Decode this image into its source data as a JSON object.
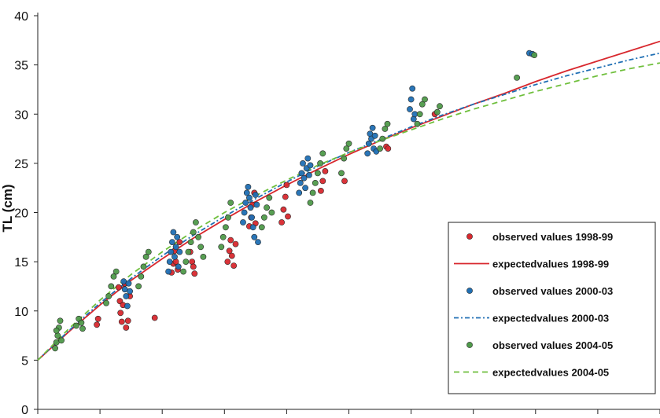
{
  "chart_data": {
    "type": "scatter",
    "title": "",
    "xlabel": "",
    "ylabel": "TL (cm)",
    "ylim": [
      0,
      40
    ],
    "yticks": [
      0,
      5,
      10,
      15,
      20,
      25,
      30,
      35,
      40
    ],
    "xlim": [
      0,
      10
    ],
    "grid": false,
    "legend_position": "bottom-right",
    "colors": {
      "s1998": "#d8282e",
      "s2000": "#1f6fb4",
      "s2004": "#6fbf3c",
      "s2004_marker": "#4f9a4a"
    },
    "series": [
      {
        "name": "observed values 1998-99",
        "kind": "observed",
        "color_key": "s1998",
        "points": [
          [
            0.95,
            8.6
          ],
          [
            0.97,
            9.2
          ],
          [
            1.3,
            12.4
          ],
          [
            1.32,
            11.0
          ],
          [
            1.33,
            9.8
          ],
          [
            1.35,
            8.9
          ],
          [
            1.37,
            10.6
          ],
          [
            1.4,
            12.8
          ],
          [
            1.42,
            8.3
          ],
          [
            1.45,
            9.0
          ],
          [
            1.48,
            11.5
          ],
          [
            1.88,
            9.3
          ],
          [
            2.15,
            13.9
          ],
          [
            2.18,
            14.8
          ],
          [
            2.2,
            16.1
          ],
          [
            2.22,
            15.0
          ],
          [
            2.25,
            14.2
          ],
          [
            2.28,
            17.0
          ],
          [
            2.45,
            16.0
          ],
          [
            2.48,
            15.0
          ],
          [
            2.5,
            14.5
          ],
          [
            2.52,
            13.8
          ],
          [
            3.05,
            15.0
          ],
          [
            3.08,
            16.1
          ],
          [
            3.1,
            17.2
          ],
          [
            3.12,
            15.6
          ],
          [
            3.15,
            14.6
          ],
          [
            3.18,
            16.8
          ],
          [
            3.4,
            18.6
          ],
          [
            3.43,
            19.5
          ],
          [
            3.45,
            20.8
          ],
          [
            3.48,
            22.0
          ],
          [
            3.5,
            18.9
          ],
          [
            3.92,
            19.0
          ],
          [
            3.95,
            20.3
          ],
          [
            3.98,
            21.6
          ],
          [
            4.0,
            22.8
          ],
          [
            4.02,
            19.6
          ],
          [
            4.55,
            22.2
          ],
          [
            4.58,
            23.2
          ],
          [
            4.62,
            24.2
          ],
          [
            4.93,
            23.2
          ],
          [
            5.6,
            26.7
          ],
          [
            5.63,
            26.5
          ],
          [
            6.38,
            30.0
          ]
        ]
      },
      {
        "name": "expected values 1998-99",
        "kind": "expected",
        "color_key": "s1998",
        "dash": "solid",
        "x": [
          0.0,
          0.5,
          1.0,
          1.5,
          2.0,
          2.5,
          3.0,
          3.5,
          4.0,
          4.5,
          5.0,
          5.5,
          6.0,
          6.5,
          7.0,
          7.5,
          8.0,
          8.5,
          9.0,
          9.5,
          10.0
        ],
        "y": [
          5.0,
          7.9,
          10.6,
          13.1,
          15.3,
          17.4,
          19.3,
          21.1,
          22.8,
          24.4,
          25.9,
          27.3,
          28.6,
          29.8,
          31.0,
          32.1,
          33.3,
          34.4,
          35.4,
          36.4,
          37.4
        ]
      },
      {
        "name": "observed values 2000-03",
        "kind": "observed",
        "color_key": "s2000",
        "points": [
          [
            1.38,
            13.0
          ],
          [
            1.4,
            12.2
          ],
          [
            1.42,
            11.5
          ],
          [
            1.44,
            10.5
          ],
          [
            1.46,
            12.8
          ],
          [
            1.48,
            12.0
          ],
          [
            2.1,
            14.0
          ],
          [
            2.12,
            15.0
          ],
          [
            2.14,
            16.0
          ],
          [
            2.16,
            17.0
          ],
          [
            2.18,
            18.0
          ],
          [
            2.2,
            15.5
          ],
          [
            2.22,
            16.5
          ],
          [
            2.24,
            17.5
          ],
          [
            2.26,
            14.5
          ],
          [
            2.28,
            16.0
          ],
          [
            3.3,
            19.0
          ],
          [
            3.32,
            20.0
          ],
          [
            3.34,
            21.0
          ],
          [
            3.36,
            22.0
          ],
          [
            3.38,
            22.6
          ],
          [
            3.4,
            21.5
          ],
          [
            3.42,
            20.5
          ],
          [
            3.44,
            19.5
          ],
          [
            3.46,
            18.5
          ],
          [
            3.48,
            17.5
          ],
          [
            3.5,
            21.8
          ],
          [
            3.52,
            20.8
          ],
          [
            3.54,
            17.0
          ],
          [
            4.2,
            22.0
          ],
          [
            4.22,
            23.0
          ],
          [
            4.24,
            24.0
          ],
          [
            4.26,
            25.0
          ],
          [
            4.28,
            23.5
          ],
          [
            4.3,
            22.5
          ],
          [
            4.32,
            24.5
          ],
          [
            4.34,
            25.5
          ],
          [
            4.36,
            23.8
          ],
          [
            4.38,
            24.8
          ],
          [
            5.3,
            26.0
          ],
          [
            5.32,
            27.0
          ],
          [
            5.34,
            28.0
          ],
          [
            5.36,
            27.5
          ],
          [
            5.38,
            28.6
          ],
          [
            5.4,
            26.5
          ],
          [
            5.42,
            27.8
          ],
          [
            5.44,
            26.2
          ],
          [
            5.98,
            30.5
          ],
          [
            6.0,
            31.5
          ],
          [
            6.02,
            32.6
          ],
          [
            6.04,
            29.5
          ],
          [
            6.06,
            30.0
          ],
          [
            7.9,
            36.2
          ],
          [
            7.95,
            36.1
          ]
        ]
      },
      {
        "name": "expected values 2000-03",
        "kind": "expected",
        "color_key": "s2000",
        "dash": "dash-dot",
        "x": [
          0.0,
          0.5,
          1.0,
          1.5,
          2.0,
          2.5,
          3.0,
          3.5,
          4.0,
          4.5,
          5.0,
          5.5,
          6.0,
          6.5,
          7.0,
          7.5,
          8.0,
          8.5,
          9.0,
          9.5,
          10.0
        ],
        "y": [
          5.0,
          8.0,
          10.8,
          13.3,
          15.6,
          17.7,
          19.6,
          21.4,
          23.1,
          24.7,
          26.1,
          27.4,
          28.7,
          29.9,
          31.0,
          32.0,
          33.0,
          33.9,
          34.7,
          35.5,
          36.2
        ]
      },
      {
        "name": "observed values 2004-05",
        "kind": "observed",
        "color_key": "s2004_marker",
        "points": [
          [
            0.28,
            6.2
          ],
          [
            0.3,
            6.8
          ],
          [
            0.32,
            7.5
          ],
          [
            0.34,
            8.3
          ],
          [
            0.36,
            9.0
          ],
          [
            0.38,
            7.0
          ],
          [
            0.3,
            8.0
          ],
          [
            0.62,
            8.5
          ],
          [
            0.66,
            9.2
          ],
          [
            0.7,
            8.8
          ],
          [
            0.72,
            8.2
          ],
          [
            1.1,
            10.8
          ],
          [
            1.14,
            11.5
          ],
          [
            1.18,
            12.5
          ],
          [
            1.22,
            13.5
          ],
          [
            1.26,
            14.0
          ],
          [
            1.62,
            12.5
          ],
          [
            1.66,
            13.5
          ],
          [
            1.7,
            14.5
          ],
          [
            1.74,
            15.5
          ],
          [
            1.78,
            16.0
          ],
          [
            2.34,
            14.0
          ],
          [
            2.38,
            15.0
          ],
          [
            2.42,
            16.0
          ],
          [
            2.46,
            17.0
          ],
          [
            2.5,
            18.0
          ],
          [
            2.54,
            19.0
          ],
          [
            2.58,
            17.5
          ],
          [
            2.62,
            16.5
          ],
          [
            2.66,
            15.5
          ],
          [
            2.95,
            16.5
          ],
          [
            2.98,
            17.5
          ],
          [
            3.02,
            18.5
          ],
          [
            3.06,
            19.5
          ],
          [
            3.1,
            21.0
          ],
          [
            3.6,
            18.5
          ],
          [
            3.64,
            19.5
          ],
          [
            3.68,
            20.5
          ],
          [
            3.72,
            21.5
          ],
          [
            3.76,
            20.0
          ],
          [
            4.38,
            21.0
          ],
          [
            4.42,
            22.0
          ],
          [
            4.46,
            23.0
          ],
          [
            4.5,
            24.0
          ],
          [
            4.54,
            25.0
          ],
          [
            4.58,
            26.0
          ],
          [
            4.88,
            24.0
          ],
          [
            4.92,
            25.5
          ],
          [
            4.96,
            26.5
          ],
          [
            5.0,
            27.0
          ],
          [
            5.5,
            26.5
          ],
          [
            5.54,
            27.5
          ],
          [
            5.58,
            28.5
          ],
          [
            5.62,
            29.0
          ],
          [
            6.1,
            29.0
          ],
          [
            6.14,
            30.0
          ],
          [
            6.18,
            31.0
          ],
          [
            6.22,
            31.5
          ],
          [
            6.42,
            30.2
          ],
          [
            6.46,
            30.8
          ],
          [
            7.7,
            33.7
          ],
          [
            7.98,
            36.0
          ]
        ]
      },
      {
        "name": "expected values 2004-05",
        "kind": "expected",
        "color_key": "s2004",
        "dash": "dash",
        "x": [
          0.0,
          0.5,
          1.0,
          1.5,
          2.0,
          2.5,
          3.0,
          3.5,
          4.0,
          4.5,
          5.0,
          5.5,
          6.0,
          6.5,
          7.0,
          7.5,
          8.0,
          8.5,
          9.0,
          9.5,
          10.0
        ],
        "y": [
          5.0,
          8.2,
          11.1,
          13.7,
          16.0,
          18.1,
          20.0,
          21.7,
          23.3,
          24.8,
          26.1,
          27.3,
          28.4,
          29.5,
          30.5,
          31.4,
          32.3,
          33.1,
          33.9,
          34.6,
          35.2
        ]
      }
    ],
    "legend": [
      {
        "label": "observed values 1998-99",
        "marker": "dot",
        "color_key": "s1998"
      },
      {
        "label": "expectedvalues 1998-99",
        "marker": "solid",
        "color_key": "s1998"
      },
      {
        "label": "observed values 2000-03",
        "marker": "dot",
        "color_key": "s2000"
      },
      {
        "label": "expectedvalues 2000-03",
        "marker": "dash-dot",
        "color_key": "s2000"
      },
      {
        "label": "observed values 2004-05",
        "marker": "dot",
        "color_key": "s2004_marker"
      },
      {
        "label": "expectedvalues 2004-05",
        "marker": "dash",
        "color_key": "s2004"
      }
    ]
  }
}
